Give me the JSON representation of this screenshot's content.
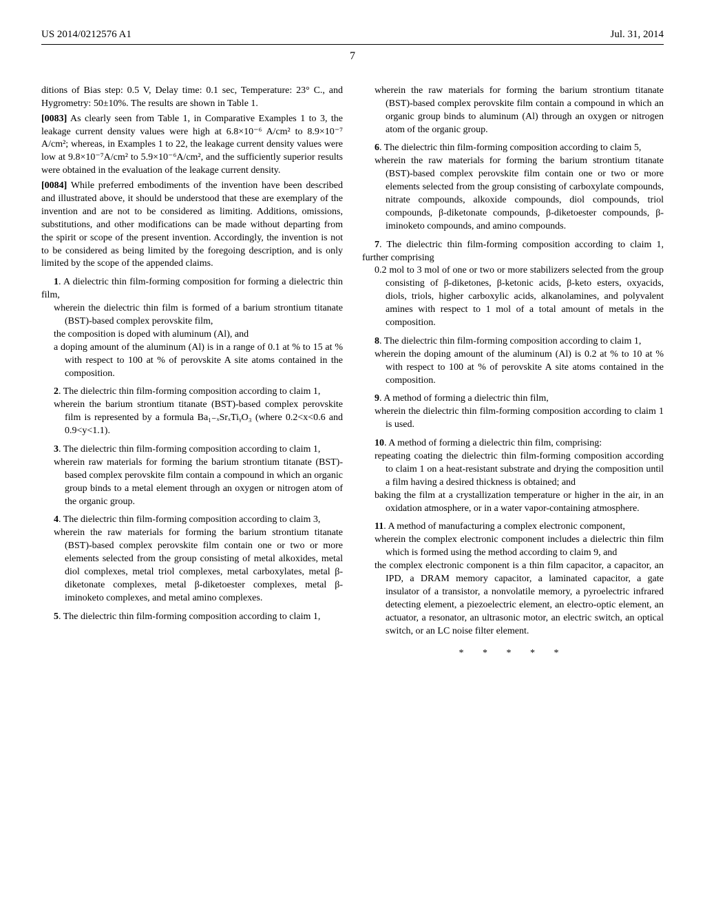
{
  "header": {
    "left": "US 2014/0212576 A1",
    "right": "Jul. 31, 2014"
  },
  "page_number": "7",
  "left_column": {
    "para_83_prefix": "ditions of Bias step: 0.5 V, Delay time: 0.1 sec, Temperature: 23° C., and Hygrometry: 50±10%. The results are shown in Table 1.",
    "para_83_num": "[0083]",
    "para_83_text": " As clearly seen from Table 1, in Comparative Examples 1 to 3, the leakage current density values were high at 6.8×10⁻⁶ A/cm² to 8.9×10⁻⁷ A/cm²; whereas, in Examples 1 to 22, the leakage current density values were low at 9.8×10⁻⁷A/cm² to 5.9×10⁻⁶A/cm², and the sufficiently superior results were obtained in the evaluation of the leakage current density.",
    "para_84_num": "[0084]",
    "para_84_text": " While preferred embodiments of the invention have been described and illustrated above, it should be understood that these are exemplary of the invention and are not to be considered as limiting. Additions, omissions, substitutions, and other modifications can be made without departing from the spirit or scope of the present invention. Accordingly, the invention is not to be considered as being limited by the foregoing description, and is only limited by the scope of the appended claims.",
    "claim1_main": "1. A dielectric thin film-forming composition for forming a dielectric thin film,",
    "claim1_sub1": "wherein the dielectric thin film is formed of a barium strontium titanate (BST)-based complex perovskite film,",
    "claim1_sub2": "the composition is doped with aluminum (Al), and",
    "claim1_sub3": "a doping amount of the aluminum (Al) is in a range of 0.1 at % to 15 at % with respect to 100 at % of perovskite A site atoms contained in the composition.",
    "claim2_main": "2. The dielectric thin film-forming composition according to claim 1,",
    "claim2_sub1": "wherein the barium strontium titanate (BST)-based complex perovskite film is represented by a formula Ba₁₋ₓSrₓTiᵧO₃ (where 0.2<x<0.6 and 0.9<y<1.1).",
    "claim3_main": "3. The dielectric thin film-forming composition according to claim 1,",
    "claim3_sub1": "wherein raw materials for forming the barium strontium titanate (BST)-based complex perovskite film contain a compound in which an organic group binds to a metal element through an oxygen or nitrogen atom of the organic group.",
    "claim4_main": "4. The dielectric thin film-forming composition according to claim 3,",
    "claim4_sub1": "wherein the raw materials for forming the barium strontium titanate (BST)-based complex perovskite film contain one or two or more elements selected from the group consisting of metal alkoxides, metal diol complexes, metal triol complexes, metal carboxylates, metal β-diketonate complexes, metal β-diketoester complexes, metal β-iminoketo complexes, and metal amino complexes.",
    "claim5_main": "5. The dielectric thin film-forming composition according to claim 1,"
  },
  "right_column": {
    "claim5_sub1": "wherein the raw materials for forming the barium strontium titanate (BST)-based complex perovskite film contain a compound in which an organic group binds to aluminum (Al) through an oxygen or nitrogen atom of the organic group.",
    "claim6_main": "6. The dielectric thin film-forming composition according to claim 5,",
    "claim6_sub1": "wherein the raw materials for forming the barium strontium titanate (BST)-based complex perovskite film contain one or two or more elements selected from the group consisting of carboxylate compounds, nitrate compounds, alkoxide compounds, diol compounds, triol compounds, β-diketonate compounds, β-diketoester compounds, β-iminoketo compounds, and amino compounds.",
    "claim7_main": "7. The dielectric thin film-forming composition according to claim 1, further comprising",
    "claim7_sub1": "0.2 mol to 3 mol of one or two or more stabilizers selected from the group consisting of β-diketones, β-ketonic acids, β-keto esters, oxyacids, diols, triols, higher carboxylic acids, alkanolamines, and polyvalent amines with respect to 1 mol of a total amount of metals in the composition.",
    "claim8_main": "8. The dielectric thin film-forming composition according to claim 1,",
    "claim8_sub1": "wherein the doping amount of the aluminum (Al) is 0.2 at % to 10 at % with respect to 100 at % of perovskite A site atoms contained in the composition.",
    "claim9_main": "9. A method of forming a dielectric thin film,",
    "claim9_sub1": "wherein the dielectric thin film-forming composition according to claim 1 is used.",
    "claim10_main": "10. A method of forming a dielectric thin film, comprising:",
    "claim10_sub1": "repeating coating the dielectric thin film-forming composition according to claim 1 on a heat-resistant substrate and drying the composition until a film having a desired thickness is obtained; and",
    "claim10_sub2": "baking the film at a crystallization temperature or higher in the air, in an oxidation atmosphere, or in a water vapor-containing atmosphere.",
    "claim11_main": "11. A method of manufacturing a complex electronic component,",
    "claim11_sub1": "wherein the complex electronic component includes a dielectric thin film which is formed using the method according to claim 9, and",
    "claim11_sub2": "the complex electronic component is a thin film capacitor, a capacitor, an IPD, a DRAM memory capacitor, a laminated capacitor, a gate insulator of a transistor, a nonvolatile memory, a pyroelectric infrared detecting element, a piezoelectric element, an electro-optic element, an actuator, a resonator, an ultrasonic motor, an electric switch, an optical switch, or an LC noise filter element.",
    "stars": "* * * * *"
  }
}
